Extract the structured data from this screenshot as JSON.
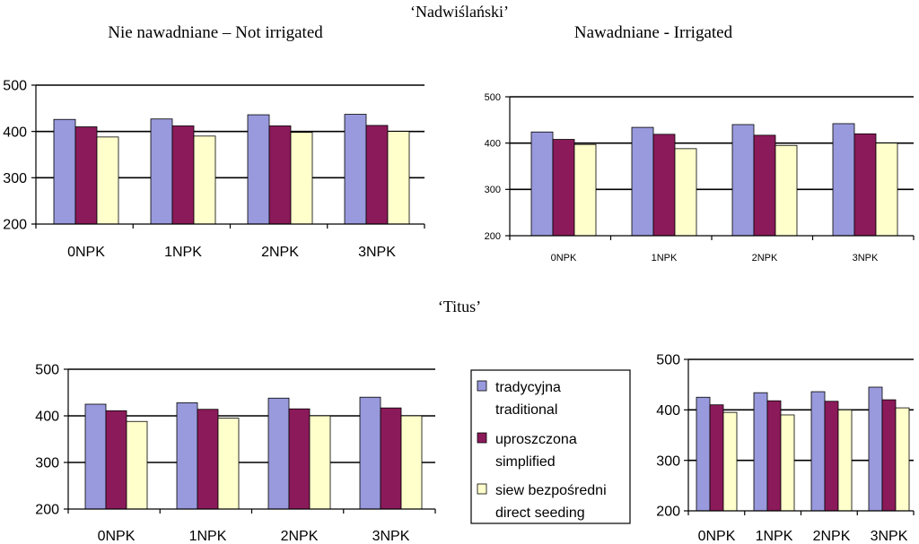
{
  "headings": {
    "cultivar1": "‘Nadwiślański’",
    "cultivar2": "‘Titus’",
    "not_irrigated": "Nie nawadniane – Not irrigated",
    "irrigated": "Nawadniane - Irrigated"
  },
  "legend": {
    "items": [
      {
        "line1": "tradycyjna",
        "line2": "traditional",
        "color": "#9999dd"
      },
      {
        "line1": "uproszczona",
        "line2": "simplified",
        "color": "#8b1a5a"
      },
      {
        "line1": "siew bezpośredni",
        "line2": "direct seeding",
        "color": "#ffffcc"
      }
    ]
  },
  "chart_data": [
    {
      "type": "bar",
      "title": "",
      "categories": [
        "0NPK",
        "1NPK",
        "2NPK",
        "3NPK"
      ],
      "ylim": [
        200,
        500
      ],
      "yticks": [
        "200",
        "300",
        "400",
        "500"
      ],
      "series": [
        {
          "name": "tradycyjna traditional",
          "values": [
            426,
            427,
            436,
            437
          ]
        },
        {
          "name": "uproszczona simplified",
          "values": [
            410,
            412,
            412,
            413
          ]
        },
        {
          "name": "siew bezpośredni direct seeding",
          "values": [
            388,
            390,
            398,
            400
          ]
        }
      ]
    },
    {
      "type": "bar",
      "title": "",
      "categories": [
        "0NPK",
        "1NPK",
        "2NPK",
        "3NPK"
      ],
      "ylim": [
        200,
        500
      ],
      "yticks": [
        "200",
        "300",
        "400",
        "500"
      ],
      "series": [
        {
          "name": "tradycyjna traditional",
          "values": [
            424,
            434,
            440,
            442
          ]
        },
        {
          "name": "uproszczona simplified",
          "values": [
            408,
            419,
            417,
            420
          ]
        },
        {
          "name": "siew bezpośredni direct seeding",
          "values": [
            397,
            388,
            395,
            400
          ]
        }
      ]
    },
    {
      "type": "bar",
      "title": "",
      "categories": [
        "0NPK",
        "1NPK",
        "2NPK",
        "3NPK"
      ],
      "ylim": [
        200,
        500
      ],
      "yticks": [
        "200",
        "300",
        "400",
        "500"
      ],
      "series": [
        {
          "name": "tradycyjna traditional",
          "values": [
            425,
            428,
            438,
            440
          ]
        },
        {
          "name": "uproszczona simplified",
          "values": [
            411,
            414,
            415,
            417
          ]
        },
        {
          "name": "siew bezpośredni direct seeding",
          "values": [
            388,
            395,
            400,
            400
          ]
        }
      ]
    },
    {
      "type": "bar",
      "title": "",
      "categories": [
        "0NPK",
        "1NPK",
        "2NPK",
        "3NPK"
      ],
      "ylim": [
        200,
        500
      ],
      "yticks": [
        "200",
        "300",
        "400",
        "500"
      ],
      "series": [
        {
          "name": "tradycyjna traditional",
          "values": [
            425,
            434,
            436,
            445
          ]
        },
        {
          "name": "uproszczona simplified",
          "values": [
            410,
            418,
            417,
            420
          ]
        },
        {
          "name": "siew bezpośredni direct seeding",
          "values": [
            395,
            390,
            400,
            404
          ]
        }
      ]
    }
  ]
}
